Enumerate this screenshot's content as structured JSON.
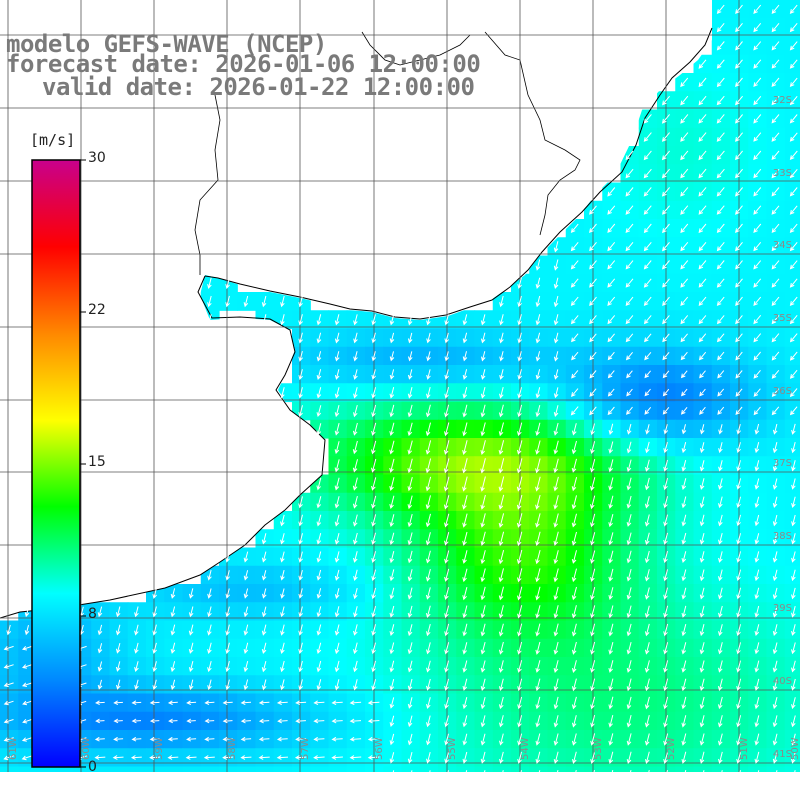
{
  "title": {
    "line1": "modelo GEFS-WAVE (NCEP)",
    "line2": "forecast date: 2026-01-06 12:00:00",
    "line3": "valid date: 2026-01-22 12:00:00"
  },
  "colorbar": {
    "unit": "[m/s]",
    "min": 0,
    "max": 30,
    "ticks": [
      "30",
      "22",
      "15",
      "8",
      "0"
    ],
    "colors": [
      "#0000ff",
      "#0088ff",
      "#00ffff",
      "#00ff00",
      "#ffff00",
      "#ff8800",
      "#ff0000",
      "#c8008c"
    ]
  },
  "map": {
    "lat_labels": [
      "32S",
      "33S",
      "34S",
      "35S",
      "36S",
      "37S",
      "38S",
      "39S",
      "40S",
      "41S"
    ],
    "lon_labels": [
      "61W",
      "60W",
      "59W",
      "58W",
      "57W",
      "56W",
      "55W",
      "54W",
      "53W",
      "52W",
      "51W",
      "50W"
    ],
    "land_color": "#ffffff",
    "grid_color": "#555555"
  }
}
